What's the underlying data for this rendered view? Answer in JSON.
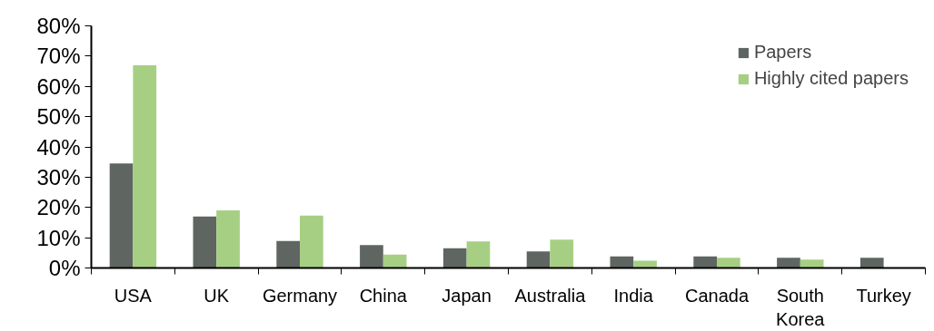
{
  "chart_data": {
    "type": "bar",
    "categories": [
      "USA",
      "UK",
      "Germany",
      "China",
      "Japan",
      "Australia",
      "India",
      "Canada",
      "South Korea",
      "Turkey"
    ],
    "series": [
      {
        "name": "Papers",
        "color": "#5f6662",
        "values": [
          34.5,
          17.0,
          8.9,
          7.6,
          6.5,
          5.5,
          3.8,
          3.8,
          3.4,
          3.4
        ]
      },
      {
        "name": "Highly cited papers",
        "color": "#a6cf83",
        "values": [
          67,
          19.0,
          17.3,
          4.4,
          8.8,
          9.4,
          2.4,
          3.4,
          2.8,
          null
        ]
      }
    ],
    "ylim": [
      0,
      80
    ],
    "yticks": [
      {
        "value": 0,
        "label": "0%"
      },
      {
        "value": 10,
        "label": "10%"
      },
      {
        "value": 20,
        "label": "20%"
      },
      {
        "value": 30,
        "label": "30%"
      },
      {
        "value": 40,
        "label": "40%"
      },
      {
        "value": 50,
        "label": "50%"
      },
      {
        "value": 60,
        "label": "60%"
      },
      {
        "value": 70,
        "label": "70%"
      },
      {
        "value": 80,
        "label": "80%"
      }
    ],
    "legend": "top right",
    "grid": false
  }
}
